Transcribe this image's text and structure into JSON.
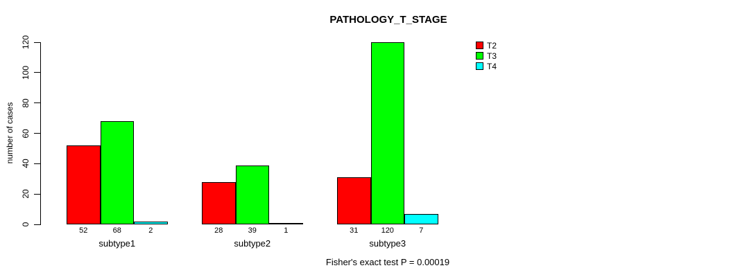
{
  "title": "PATHOLOGY_T_STAGE",
  "footer": "Fisher's exact test P = 0.00019",
  "y_axis": {
    "label": "number of cases"
  },
  "chart_data": {
    "type": "bar",
    "title": "PATHOLOGY_T_STAGE",
    "categories": [
      "subtype1",
      "subtype2",
      "subtype3"
    ],
    "series": [
      {
        "name": "T2",
        "color": "#ff0000",
        "values": [
          52,
          28,
          31
        ]
      },
      {
        "name": "T3",
        "color": "#00ff00",
        "values": [
          68,
          39,
          120
        ]
      },
      {
        "name": "T4",
        "color": "#00ffff",
        "values": [
          2,
          1,
          7
        ]
      }
    ],
    "xlabel": "",
    "ylabel": "number of cases",
    "ylim": [
      0,
      120
    ],
    "yticks": [
      0,
      20,
      40,
      60,
      80,
      100,
      120
    ],
    "bar_value_labels": true,
    "grid": false,
    "legend_position": "top-right",
    "annotation": "Fisher's exact test P = 0.00019"
  }
}
